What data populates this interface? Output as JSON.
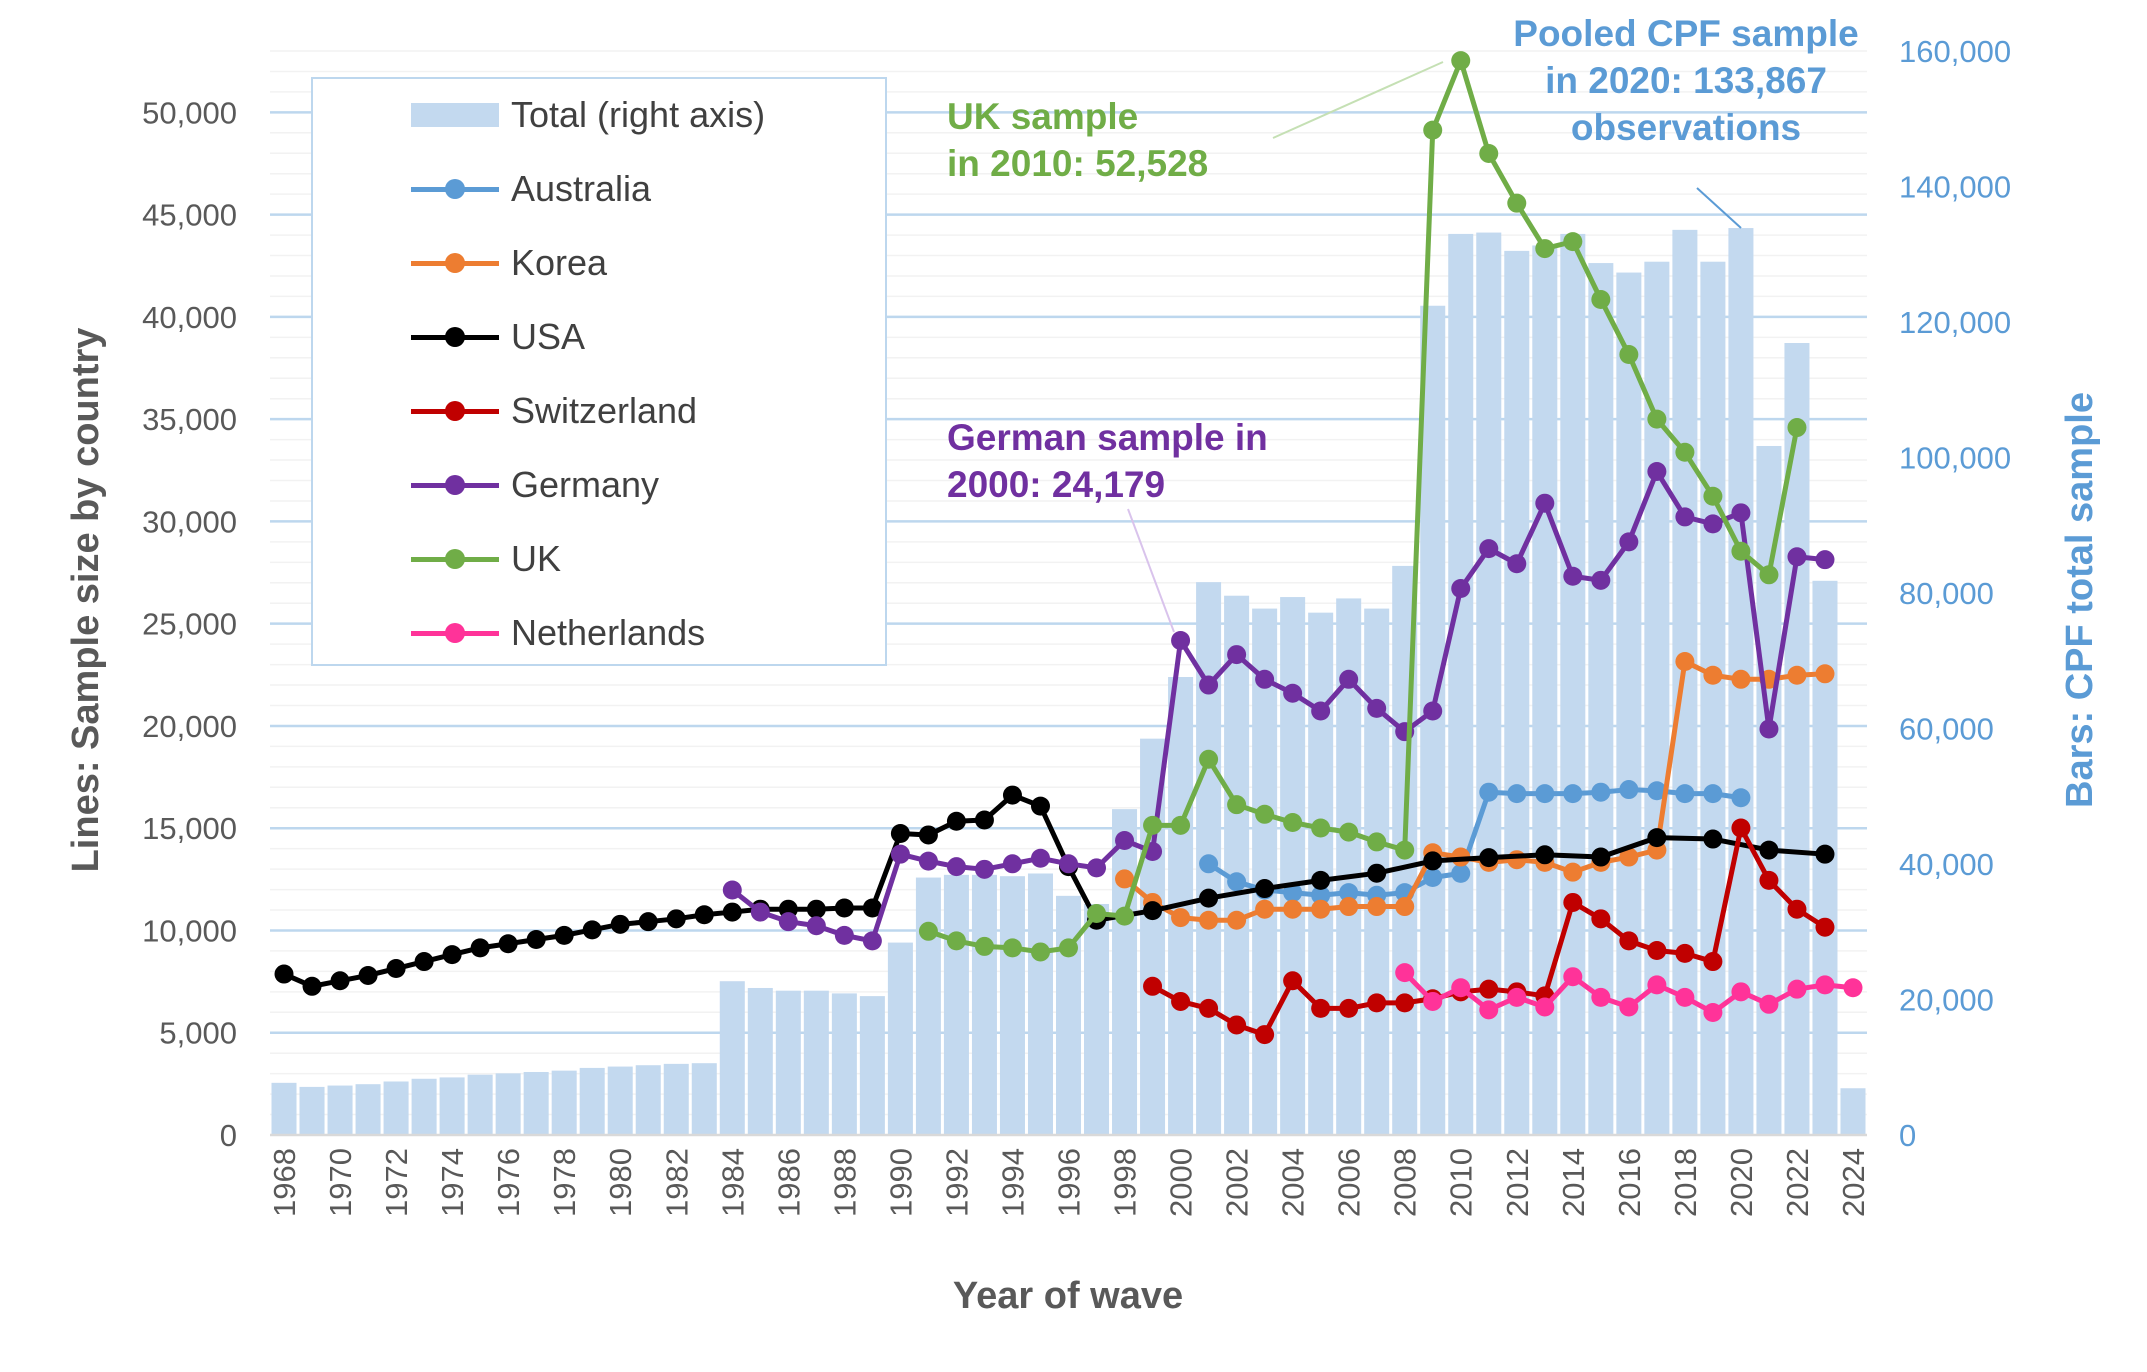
{
  "chart_data": {
    "type": "bar+line",
    "xlabel": "Year of wave",
    "ylabel": "Lines: Sample size by country",
    "y2label": "Bars: CPF total sample",
    "ylim": [
      0,
      53000
    ],
    "y2lim": [
      0,
      160000
    ],
    "yticks": [
      "0",
      "5,000",
      "10,000",
      "15,000",
      "20,000",
      "25,000",
      "30,000",
      "35,000",
      "40,000",
      "45,000",
      "50,000"
    ],
    "y2ticks": [
      "0",
      "20,000",
      "40,000",
      "60,000",
      "80,000",
      "100,000",
      "120,000",
      "140,000",
      "160,000"
    ],
    "xticks": [
      "1968",
      "1970",
      "1972",
      "1974",
      "1976",
      "1978",
      "1980",
      "1982",
      "1984",
      "1986",
      "1988",
      "1990",
      "1992",
      "1994",
      "1996",
      "1998",
      "2000",
      "2002",
      "2004",
      "2006",
      "2008",
      "2010",
      "2012",
      "2014",
      "2016",
      "2018",
      "2020",
      "2022",
      "2024"
    ],
    "grid": true,
    "legend_position": "top-left",
    "categories": [
      1968,
      1969,
      1970,
      1971,
      1972,
      1973,
      1974,
      1975,
      1976,
      1977,
      1978,
      1979,
      1980,
      1981,
      1982,
      1983,
      1984,
      1985,
      1986,
      1987,
      1988,
      1989,
      1990,
      1991,
      1992,
      1993,
      1994,
      1995,
      1996,
      1997,
      1998,
      1999,
      2000,
      2001,
      2002,
      2003,
      2004,
      2005,
      2006,
      2007,
      2008,
      2009,
      2010,
      2011,
      2012,
      2013,
      2014,
      2015,
      2016,
      2017,
      2018,
      2019,
      2020,
      2021,
      2022,
      2023,
      2024
    ],
    "bars": {
      "name": "Total (right axis)",
      "color": "#c3d9ef",
      "values": [
        7700,
        7100,
        7300,
        7500,
        7900,
        8300,
        8500,
        8900,
        9100,
        9300,
        9500,
        9900,
        10100,
        10300,
        10500,
        10600,
        22700,
        21700,
        21300,
        21300,
        20900,
        20500,
        28400,
        38000,
        38400,
        38400,
        38200,
        38600,
        35300,
        34100,
        48100,
        58500,
        67600,
        81600,
        79600,
        77700,
        79400,
        77100,
        79200,
        77700,
        84000,
        122400,
        133000,
        133200,
        130500,
        131300,
        133000,
        128700,
        127300,
        128900,
        133600,
        128900,
        133867,
        101700,
        116900,
        81800,
        6900
      ]
    },
    "series": [
      {
        "name": "Australia",
        "color": "#5b9bd5",
        "points": [
          [
            2001,
            13260
          ],
          [
            2002,
            12380
          ],
          [
            2003,
            11980
          ],
          [
            2004,
            11850
          ],
          [
            2005,
            11720
          ],
          [
            2006,
            11850
          ],
          [
            2007,
            11720
          ],
          [
            2008,
            11850
          ],
          [
            2009,
            12590
          ],
          [
            2010,
            12790
          ],
          [
            2011,
            16760
          ],
          [
            2012,
            16690
          ],
          [
            2013,
            16690
          ],
          [
            2014,
            16690
          ],
          [
            2015,
            16760
          ],
          [
            2016,
            16890
          ],
          [
            2017,
            16830
          ],
          [
            2018,
            16690
          ],
          [
            2019,
            16690
          ],
          [
            2020,
            16490
          ]
        ]
      },
      {
        "name": "Korea",
        "color": "#ed7d31",
        "points": [
          [
            1998,
            12520
          ],
          [
            1999,
            11370
          ],
          [
            2000,
            10630
          ],
          [
            2001,
            10500
          ],
          [
            2002,
            10500
          ],
          [
            2003,
            11040
          ],
          [
            2004,
            11040
          ],
          [
            2005,
            11040
          ],
          [
            2006,
            11170
          ],
          [
            2007,
            11170
          ],
          [
            2008,
            11170
          ],
          [
            2009,
            13800
          ],
          [
            2010,
            13590
          ],
          [
            2011,
            13330
          ],
          [
            2012,
            13460
          ],
          [
            2013,
            13330
          ],
          [
            2014,
            12850
          ],
          [
            2015,
            13330
          ],
          [
            2016,
            13590
          ],
          [
            2017,
            13930
          ],
          [
            2018,
            23150
          ],
          [
            2019,
            22480
          ],
          [
            2020,
            22280
          ],
          [
            2021,
            22280
          ],
          [
            2022,
            22480
          ],
          [
            2023,
            22550
          ]
        ]
      },
      {
        "name": "USA",
        "color": "#000000",
        "points": [
          [
            1968,
            7870
          ],
          [
            1969,
            7270
          ],
          [
            1970,
            7540
          ],
          [
            1971,
            7800
          ],
          [
            1972,
            8140
          ],
          [
            1973,
            8480
          ],
          [
            1974,
            8820
          ],
          [
            1975,
            9150
          ],
          [
            1976,
            9350
          ],
          [
            1977,
            9560
          ],
          [
            1978,
            9760
          ],
          [
            1979,
            10030
          ],
          [
            1980,
            10300
          ],
          [
            1981,
            10430
          ],
          [
            1982,
            10570
          ],
          [
            1983,
            10770
          ],
          [
            1984,
            10900
          ],
          [
            1985,
            11040
          ],
          [
            1986,
            11040
          ],
          [
            1987,
            11040
          ],
          [
            1988,
            11100
          ],
          [
            1989,
            11100
          ],
          [
            1990,
            14740
          ],
          [
            1991,
            14670
          ],
          [
            1992,
            15340
          ],
          [
            1993,
            15400
          ],
          [
            1994,
            16620
          ],
          [
            1995,
            16080
          ],
          [
            1996,
            13120
          ],
          [
            1997,
            10500
          ],
          [
            1999,
            10970
          ],
          [
            2001,
            11580
          ],
          [
            2003,
            12050
          ],
          [
            2005,
            12450
          ],
          [
            2007,
            12800
          ],
          [
            2009,
            13400
          ],
          [
            2011,
            13560
          ],
          [
            2013,
            13700
          ],
          [
            2015,
            13590
          ],
          [
            2017,
            14540
          ],
          [
            2019,
            14470
          ],
          [
            2021,
            13930
          ],
          [
            2023,
            13730
          ]
        ]
      },
      {
        "name": "Switzerland",
        "color": "#c00000",
        "points": [
          [
            1999,
            7270
          ],
          [
            2000,
            6530
          ],
          [
            2001,
            6190
          ],
          [
            2002,
            5380
          ],
          [
            2003,
            4910
          ],
          [
            2004,
            7540
          ],
          [
            2005,
            6190
          ],
          [
            2006,
            6190
          ],
          [
            2007,
            6460
          ],
          [
            2008,
            6460
          ],
          [
            2009,
            6660
          ],
          [
            2010,
            7000
          ],
          [
            2011,
            7130
          ],
          [
            2012,
            7000
          ],
          [
            2013,
            6800
          ],
          [
            2014,
            11370
          ],
          [
            2015,
            10570
          ],
          [
            2016,
            9490
          ],
          [
            2017,
            9020
          ],
          [
            2018,
            8880
          ],
          [
            2019,
            8480
          ],
          [
            2020,
            15010
          ],
          [
            2021,
            12450
          ],
          [
            2022,
            11040
          ],
          [
            2023,
            10160
          ]
        ]
      },
      {
        "name": "Germany",
        "color": "#7030a0",
        "points": [
          [
            1984,
            11980
          ],
          [
            1985,
            10900
          ],
          [
            1986,
            10430
          ],
          [
            1987,
            10230
          ],
          [
            1988,
            9760
          ],
          [
            1989,
            9490
          ],
          [
            1990,
            13730
          ],
          [
            1991,
            13390
          ],
          [
            1992,
            13120
          ],
          [
            1993,
            12990
          ],
          [
            1994,
            13260
          ],
          [
            1995,
            13530
          ],
          [
            1996,
            13260
          ],
          [
            1997,
            13060
          ],
          [
            1998,
            14400
          ],
          [
            1999,
            13860
          ],
          [
            2000,
            24179
          ],
          [
            2001,
            22000
          ],
          [
            2002,
            23490
          ],
          [
            2003,
            22280
          ],
          [
            2004,
            21600
          ],
          [
            2005,
            20730
          ],
          [
            2006,
            22280
          ],
          [
            2007,
            20860
          ],
          [
            2008,
            19720
          ],
          [
            2009,
            20730
          ],
          [
            2010,
            26720
          ],
          [
            2011,
            28670
          ],
          [
            2012,
            27930
          ],
          [
            2013,
            30890
          ],
          [
            2014,
            27320
          ],
          [
            2015,
            27120
          ],
          [
            2016,
            29000
          ],
          [
            2017,
            32440
          ],
          [
            2018,
            30220
          ],
          [
            2019,
            29880
          ],
          [
            2020,
            30420
          ],
          [
            2021,
            19850
          ],
          [
            2022,
            28270
          ],
          [
            2023,
            28130
          ]
        ]
      },
      {
        "name": "UK",
        "color": "#70ad47",
        "points": [
          [
            1991,
            9960
          ],
          [
            1992,
            9490
          ],
          [
            1993,
            9220
          ],
          [
            1994,
            9150
          ],
          [
            1995,
            8950
          ],
          [
            1996,
            9150
          ],
          [
            1997,
            10830
          ],
          [
            1998,
            10700
          ],
          [
            1999,
            15140
          ],
          [
            2000,
            15140
          ],
          [
            2001,
            18370
          ],
          [
            2002,
            16150
          ],
          [
            2003,
            15680
          ],
          [
            2004,
            15280
          ],
          [
            2005,
            15010
          ],
          [
            2006,
            14810
          ],
          [
            2007,
            14330
          ],
          [
            2008,
            13930
          ],
          [
            2009,
            49130
          ],
          [
            2010,
            52528
          ],
          [
            2011,
            47990
          ],
          [
            2012,
            45560
          ],
          [
            2013,
            43340
          ],
          [
            2014,
            43680
          ],
          [
            2015,
            40850
          ],
          [
            2016,
            38160
          ],
          [
            2017,
            35000
          ],
          [
            2018,
            33380
          ],
          [
            2019,
            31230
          ],
          [
            2020,
            28540
          ],
          [
            2021,
            27390
          ],
          [
            2022,
            34590
          ]
        ]
      },
      {
        "name": "Netherlands",
        "color": "#ff3399",
        "points": [
          [
            2008,
            7940
          ],
          [
            2009,
            6530
          ],
          [
            2010,
            7200
          ],
          [
            2011,
            6120
          ],
          [
            2012,
            6730
          ],
          [
            2013,
            6260
          ],
          [
            2014,
            7740
          ],
          [
            2015,
            6730
          ],
          [
            2016,
            6260
          ],
          [
            2017,
            7340
          ],
          [
            2018,
            6730
          ],
          [
            2019,
            5990
          ],
          [
            2020,
            7000
          ],
          [
            2021,
            6390
          ],
          [
            2022,
            7130
          ],
          [
            2023,
            7340
          ],
          [
            2024,
            7200
          ]
        ]
      }
    ],
    "annotations": {
      "uk": {
        "line1": "UK sample",
        "line2": "in 2010: 52,528",
        "color": "#70ad47"
      },
      "germany": {
        "line1": "German sample in",
        "line2": "2000: 24,179",
        "color": "#7030a0"
      },
      "pooled": {
        "line1": "Pooled CPF sample",
        "line2": "in 2020: 133,867",
        "line3": "observations",
        "color": "#5b9bd5"
      }
    }
  }
}
